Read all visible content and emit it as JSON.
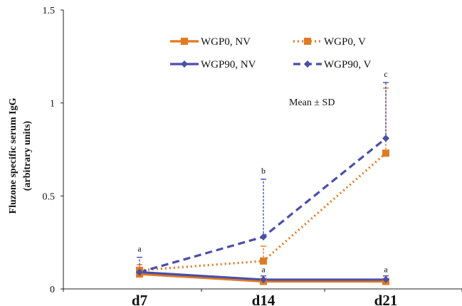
{
  "chart_data": {
    "type": "line",
    "categories": [
      "d7",
      "d14",
      "d21"
    ],
    "ylabel": "Fluzone specific serum IgG",
    "ylabel2": "(arbitrary units)",
    "ylim": [
      0,
      1.5
    ],
    "yticks": [
      0,
      0.5,
      1,
      1.5
    ],
    "ytick_labels": [
      "0",
      "0.5",
      "1",
      "1.5"
    ],
    "grid": false,
    "legend_position": "top-right",
    "annotation": "Mean ± SD",
    "series": [
      {
        "name": "WGP0, NV",
        "color": "#e07b22",
        "dash": "solid",
        "marker": "square",
        "values": [
          0.08,
          0.04,
          0.04
        ],
        "sd": [
          0.01,
          0.01,
          0.01
        ]
      },
      {
        "name": "WGP0, V",
        "color": "#e07b22",
        "dash": "dotted",
        "marker": "square",
        "values": [
          0.1,
          0.15,
          0.73
        ],
        "sd": [
          0.03,
          0.08,
          0.35
        ]
      },
      {
        "name": "WGP90, NV",
        "color": "#4a4fa8",
        "dash": "solid",
        "marker": "diamond",
        "values": [
          0.09,
          0.05,
          0.05
        ],
        "sd": [
          0.01,
          0.02,
          0.02
        ]
      },
      {
        "name": "WGP90, V",
        "color": "#4a4fa8",
        "dash": "dashed",
        "marker": "diamond",
        "values": [
          0.09,
          0.28,
          0.81
        ],
        "sd": [
          0.08,
          0.31,
          0.3
        ]
      }
    ],
    "significance_letters": [
      {
        "category": "d7",
        "value": 0.2,
        "label": "a"
      },
      {
        "category": "d14",
        "value": 0.62,
        "label": "b"
      },
      {
        "category": "d14",
        "value": 0.09,
        "label": "a"
      },
      {
        "category": "d21",
        "value": 1.14,
        "label": "c"
      },
      {
        "category": "d21",
        "value": 0.09,
        "label": "a"
      }
    ]
  }
}
